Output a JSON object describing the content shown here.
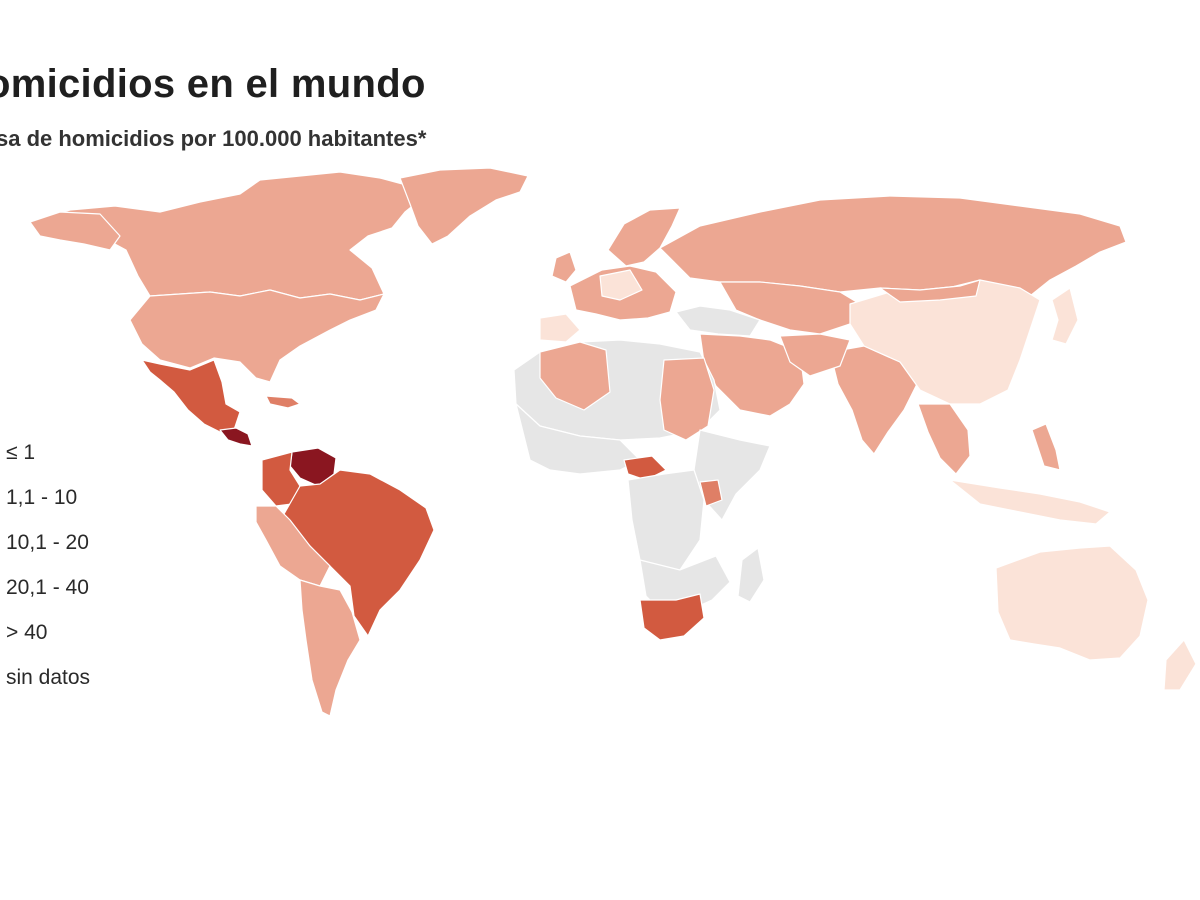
{
  "header": {
    "title": "omicidios en el mundo",
    "subtitle": "sa de homicidios por 100.000 habitantes*"
  },
  "colors": {
    "ocean": "#ffffff",
    "border": "#ffffff",
    "c1": "#fbe3d8",
    "c2": "#eca792",
    "c3": "#df7f66",
    "c4": "#d25a40",
    "c5": "#8a1620",
    "nodata": "#e6e6e6"
  },
  "legend": {
    "items": [
      {
        "label": "≤ 1",
        "class": "c1"
      },
      {
        "label": "1,1 - 10",
        "class": "c2"
      },
      {
        "label": "10,1 - 20",
        "class": "c3"
      },
      {
        "label": "20,1 - 40",
        "class": "c4"
      },
      {
        "label": "> 40",
        "class": "c5"
      },
      {
        "label": "sin datos",
        "class": "nodata"
      }
    ]
  }
}
